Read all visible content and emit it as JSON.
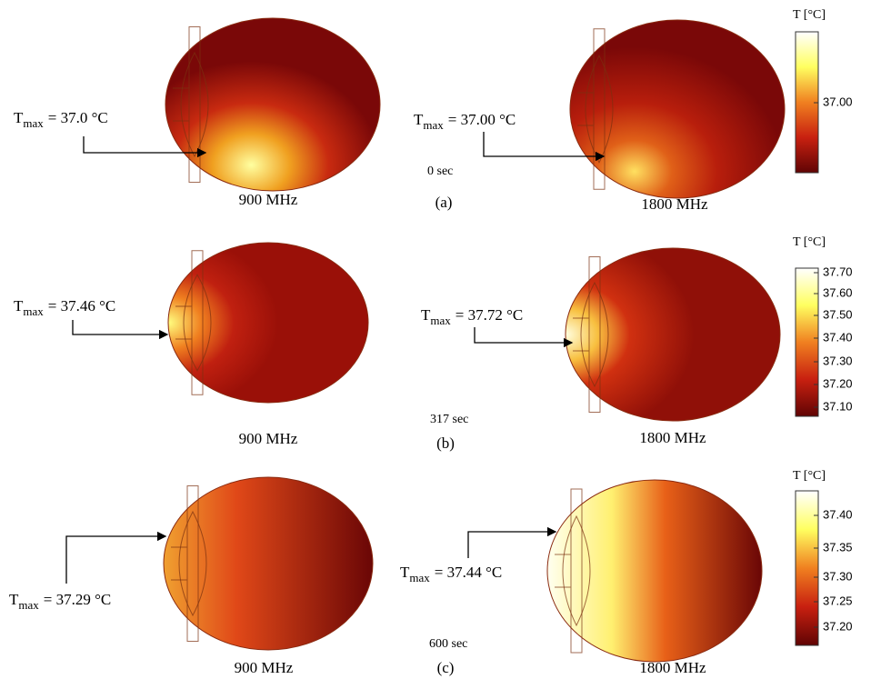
{
  "rows": [
    {
      "label": "(a)",
      "time": "0 sec",
      "panels": [
        {
          "frequency": "900 MHz",
          "tmax": {
            "symbol": "T",
            "subscript": "max",
            "value": "= 37.0 °C"
          }
        },
        {
          "frequency": "1800 MHz",
          "tmax": {
            "symbol": "T",
            "subscript": "max",
            "value": "= 37.00 °C"
          }
        }
      ],
      "colorbar": {
        "title": "T [°C]",
        "ticks": [
          "37.00"
        ]
      }
    },
    {
      "label": "(b)",
      "time": "317 sec",
      "panels": [
        {
          "frequency": "900 MHz",
          "tmax": {
            "symbol": "T",
            "subscript": "max",
            "value": "= 37.46 °C"
          }
        },
        {
          "frequency": "1800 MHz",
          "tmax": {
            "symbol": "T",
            "subscript": "max",
            "value": "= 37.72 °C"
          }
        }
      ],
      "colorbar": {
        "title": "T [°C]",
        "ticks": [
          "37.70",
          "37.60",
          "37.50",
          "37.40",
          "37.30",
          "37.20",
          "37.10"
        ]
      }
    },
    {
      "label": "(c)",
      "time": "600 sec",
      "panels": [
        {
          "frequency": "900 MHz",
          "tmax": {
            "symbol": "T",
            "subscript": "max",
            "value": "= 37.29 °C"
          }
        },
        {
          "frequency": "1800 MHz",
          "tmax": {
            "symbol": "T",
            "subscript": "max",
            "value": "= 37.44 °C"
          }
        }
      ],
      "colorbar": {
        "title": "T [°C]",
        "ticks": [
          "37.40",
          "37.35",
          "37.30",
          "37.25",
          "37.20"
        ]
      }
    }
  ]
}
